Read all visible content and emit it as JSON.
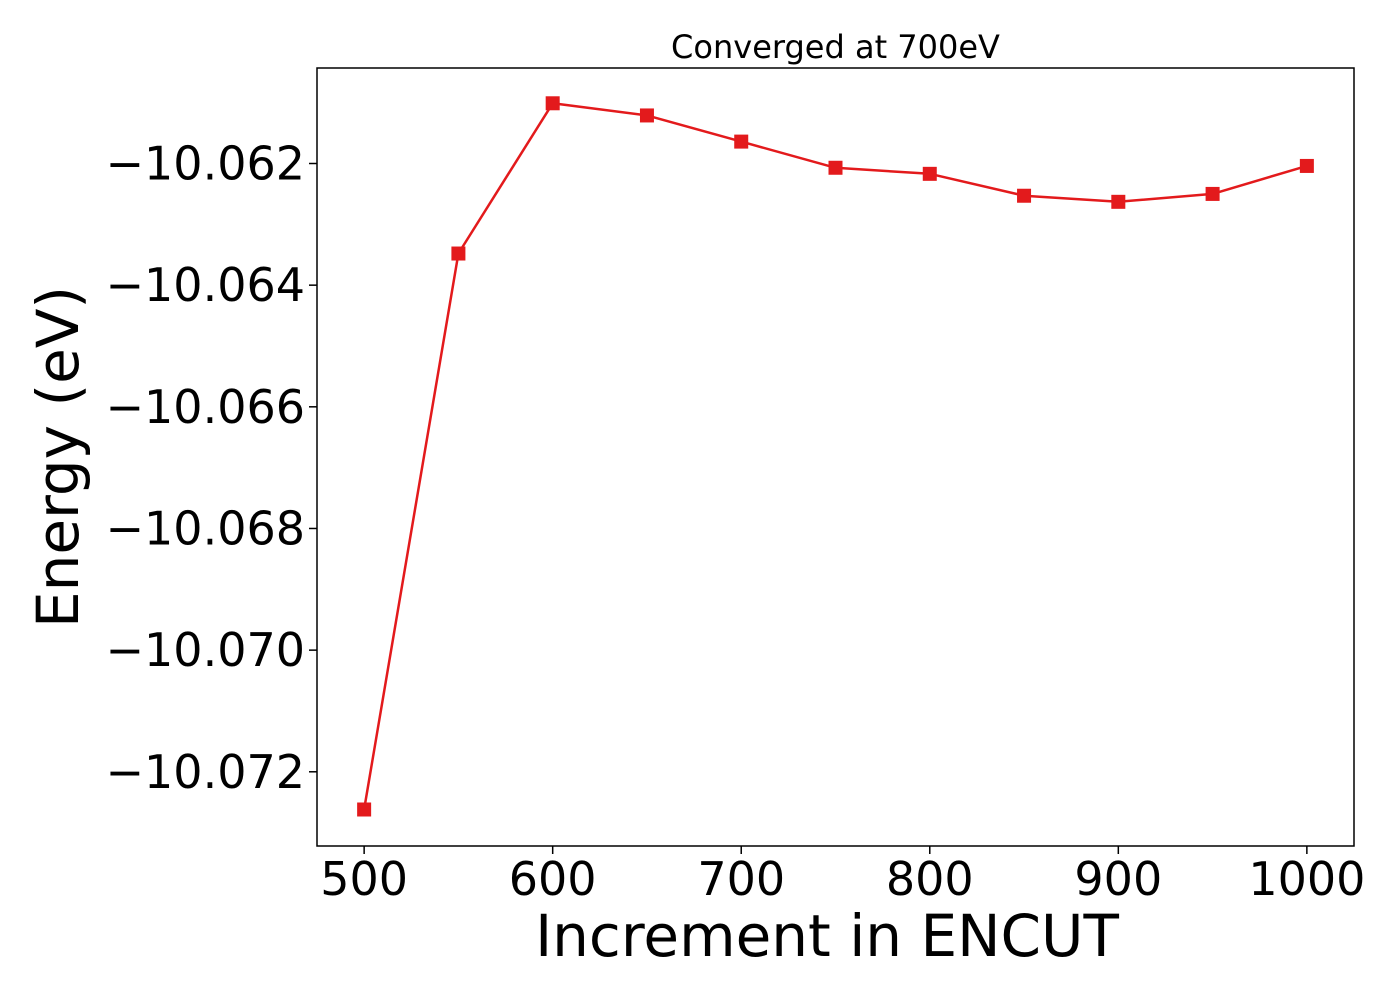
{
  "chart_data": {
    "type": "line",
    "title": "Converged at 700eV",
    "xlabel": "Increment in ENCUT",
    "ylabel": "Energy (eV)",
    "x": [
      500,
      550,
      600,
      650,
      700,
      750,
      800,
      850,
      900,
      950,
      1000
    ],
    "series": [
      {
        "values": [
          -10.07262,
          -10.06348,
          -10.06101,
          -10.06121,
          -10.06164,
          -10.06207,
          -10.06217,
          -10.06253,
          -10.06263,
          -10.0625,
          -10.06204
        ],
        "color": "#e31a1c",
        "marker": "square"
      }
    ],
    "xticks": [
      500,
      600,
      700,
      800,
      900,
      1000
    ],
    "xtick_labels": [
      "500",
      "600",
      "700",
      "800",
      "900",
      "1000"
    ],
    "yticks": [
      -10.072,
      -10.07,
      -10.068,
      -10.066,
      -10.064,
      -10.062
    ],
    "ytick_labels": [
      "−10.072",
      "−10.070",
      "−10.068",
      "−10.066",
      "−10.064",
      "−10.062"
    ],
    "xlim": [
      475,
      1025
    ],
    "ylim": [
      -10.07322,
      -10.06043
    ],
    "grid": false,
    "legend": "none"
  }
}
